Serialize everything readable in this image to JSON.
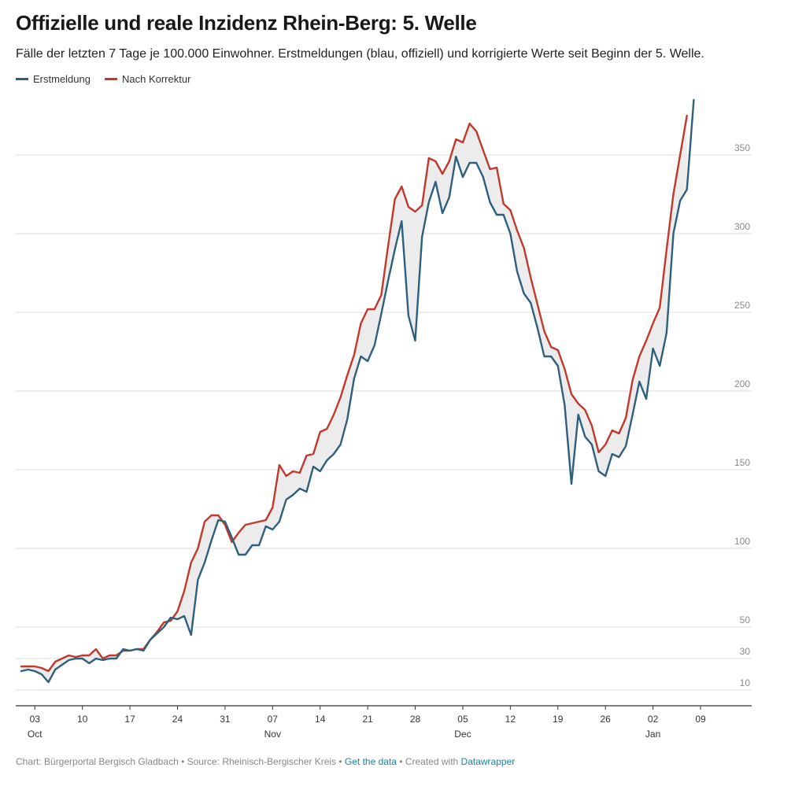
{
  "title": "Offizielle und reale Inzidenz Rhein-Berg: 5. Welle",
  "subtitle": "Fälle der letzten 7 Tage je 100.000 Einwohner. Erstmeldungen (blau, offiziell) und korrigierte Werte seit Beginn der 5. Welle.",
  "colors": {
    "series1": "#2f5f7f",
    "series2": "#c0392b",
    "fill": "#ececec",
    "grid": "#dcdcdc",
    "axis": "#333333",
    "link": "#1d81a2"
  },
  "footer": {
    "credit": "Chart: Bürgerportal Bergisch Gladbach • Source: Rheinisch-Bergischer Kreis • ",
    "get_data": "Get the data",
    "created_with": " • Created with ",
    "datawrapper": "Datawrapper"
  },
  "chart_data": {
    "type": "line",
    "title": "Offizielle und reale Inzidenz Rhein-Berg: 5. Welle",
    "ylim": [
      0,
      380
    ],
    "y_ticks": [
      10,
      30,
      50,
      100,
      150,
      200,
      250,
      300,
      350
    ],
    "x_ticks": [
      {
        "day": 3,
        "label": "03",
        "month": "Oct"
      },
      {
        "day": 10,
        "label": "10",
        "month": ""
      },
      {
        "day": 17,
        "label": "17",
        "month": ""
      },
      {
        "day": 24,
        "label": "24",
        "month": ""
      },
      {
        "day": 31,
        "label": "31",
        "month": ""
      },
      {
        "day": 38,
        "label": "07",
        "month": "Nov"
      },
      {
        "day": 45,
        "label": "14",
        "month": ""
      },
      {
        "day": 52,
        "label": "21",
        "month": ""
      },
      {
        "day": 59,
        "label": "28",
        "month": ""
      },
      {
        "day": 66,
        "label": "05",
        "month": "Dec"
      },
      {
        "day": 73,
        "label": "12",
        "month": ""
      },
      {
        "day": 80,
        "label": "19",
        "month": ""
      },
      {
        "day": 87,
        "label": "26",
        "month": ""
      },
      {
        "day": 94,
        "label": "02",
        "month": "Jan"
      },
      {
        "day": 101,
        "label": "09",
        "month": ""
      }
    ],
    "x_start": "Oct 01",
    "grid": true,
    "legend": "top-left",
    "series": [
      {
        "name": "Erstmeldung",
        "values": [
          22,
          23,
          22,
          20,
          15,
          23,
          26,
          29,
          30,
          30,
          27,
          30,
          29,
          30,
          30,
          36,
          35,
          36,
          35,
          42,
          46,
          50,
          56,
          55,
          57,
          45,
          80,
          91,
          105,
          118,
          117,
          107,
          96,
          96,
          102,
          102,
          114,
          112,
          117,
          131,
          134,
          138,
          136,
          152,
          149,
          156,
          160,
          166,
          182,
          208,
          222,
          219,
          229,
          249,
          270,
          290,
          308,
          248,
          232,
          298,
          320,
          333,
          313,
          323,
          349,
          336,
          345,
          345,
          336,
          320,
          312,
          312,
          300,
          276,
          262,
          256,
          240,
          222,
          222,
          216,
          191,
          141,
          185,
          171,
          166,
          149,
          146,
          160,
          158,
          165,
          185,
          206,
          195,
          227,
          216,
          237,
          300,
          321,
          328,
          385
        ],
        "start_day": 1
      },
      {
        "name": "Nach Korrektur",
        "values": [
          25,
          25,
          25,
          24,
          22,
          28,
          30,
          32,
          31,
          32,
          32,
          36,
          30,
          32,
          32,
          35,
          35,
          36,
          36,
          42,
          47,
          53,
          54,
          60,
          73,
          91,
          100,
          117,
          121,
          121,
          115,
          104,
          110,
          115,
          116,
          117,
          118,
          126,
          153,
          146,
          149,
          148,
          159,
          160,
          174,
          176,
          185,
          196,
          210,
          223,
          243,
          252,
          252,
          261,
          292,
          322,
          330,
          317,
          314,
          318,
          348,
          346,
          338,
          346,
          360,
          358,
          370,
          365,
          353,
          341,
          342,
          319,
          315,
          302,
          291,
          272,
          255,
          238,
          228,
          226,
          214,
          198,
          192,
          188,
          178,
          161,
          166,
          175,
          173,
          183,
          207,
          222,
          232,
          243,
          253,
          290,
          325,
          350,
          375
        ],
        "start_day": 1
      }
    ]
  }
}
